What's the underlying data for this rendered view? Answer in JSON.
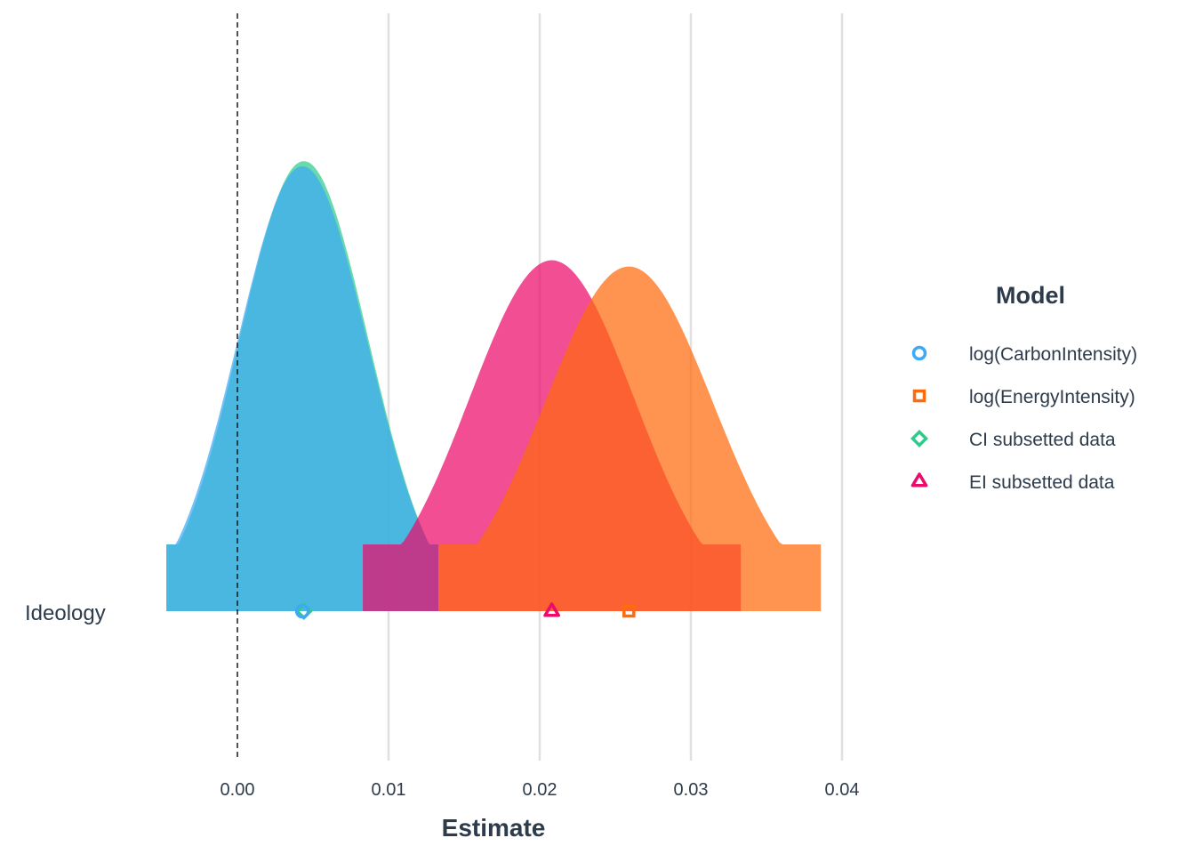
{
  "chart_data": {
    "type": "area",
    "title": "",
    "xlabel": "Estimate",
    "ylabel": "",
    "xlim": [
      -0.0055,
      0.0395
    ],
    "x_ticks": [
      0.0,
      0.01,
      0.02,
      0.03,
      0.04
    ],
    "x_tick_labels": [
      "0.00",
      "0.01",
      "0.02",
      "0.03",
      "0.04"
    ],
    "categories": [
      "Ideology"
    ],
    "reference_line": {
      "x": 0,
      "style": "dashed"
    },
    "grid": {
      "vertical": true,
      "horizontal": false
    },
    "legend": {
      "title": "Model",
      "position": "right"
    },
    "series": [
      {
        "name": "CI subsetted data",
        "estimate": 0.0044,
        "ci_low": -0.0047,
        "ci_high": 0.0133,
        "sd": 0.00425,
        "color": "#2ecc8a",
        "shape": "diamond"
      },
      {
        "name": "log(CarbonIntensity)",
        "estimate": 0.0043,
        "ci_low": -0.0047,
        "ci_high": 0.0133,
        "sd": 0.0043,
        "color": "#3fa9f5",
        "shape": "circle"
      },
      {
        "name": "EI subsetted data",
        "estimate": 0.0208,
        "ci_low": 0.0083,
        "ci_high": 0.0333,
        "sd": 0.00545,
        "color": "#ec0a6a",
        "shape": "triangle"
      },
      {
        "name": "log(EnergyIntensity)",
        "estimate": 0.0259,
        "ci_low": 0.0133,
        "ci_high": 0.0386,
        "sd": 0.00555,
        "color": "#ff6a0d",
        "shape": "square"
      }
    ],
    "legend_items": [
      {
        "label": "log(CarbonIntensity)",
        "color": "#3fa9f5",
        "shape": "circle"
      },
      {
        "label": "log(EnergyIntensity)",
        "color": "#ff6a0d",
        "shape": "square"
      },
      {
        "label": "CI subsetted data",
        "color": "#2ecc8a",
        "shape": "diamond"
      },
      {
        "label": "EI subsetted data",
        "color": "#ec0a6a",
        "shape": "triangle"
      }
    ]
  }
}
